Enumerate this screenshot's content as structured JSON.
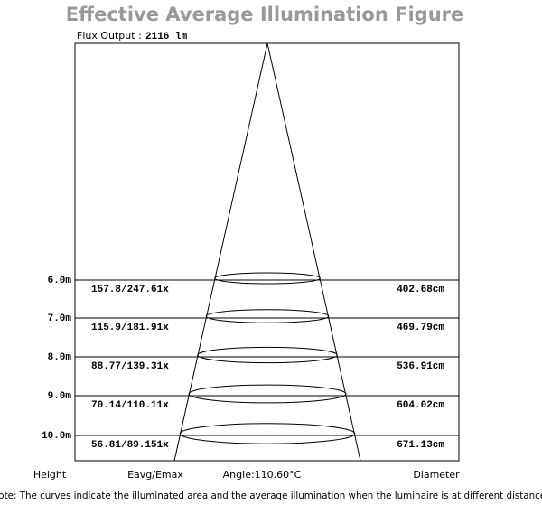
{
  "title": "Effective Average Illumination Figure",
  "flux_label": "Flux Output :",
  "flux_value": "2116 lm",
  "rows": [
    {
      "height": "6.0m",
      "eavg_emax": "157.8/247.61x",
      "diameter": "402.68cm"
    },
    {
      "height": "7.0m",
      "eavg_emax": "115.9/181.91x",
      "diameter": "469.79cm"
    },
    {
      "height": "8.0m",
      "eavg_emax": "88.77/139.31x",
      "diameter": "536.91cm"
    },
    {
      "height": "9.0m",
      "eavg_emax": "70.14/110.11x",
      "diameter": "604.02cm"
    },
    {
      "height": "10.0m",
      "eavg_emax": "56.81/89.151x",
      "diameter": "671.13cm"
    }
  ],
  "footer": {
    "height": "Height",
    "eavg_emax": "Eavg/Emax",
    "angle": "Angle:110.60°C",
    "diameter": "Diameter"
  },
  "note": "Note: The curves indicate the illuminated area and the average illumination when the luminaire is at different distance."
}
